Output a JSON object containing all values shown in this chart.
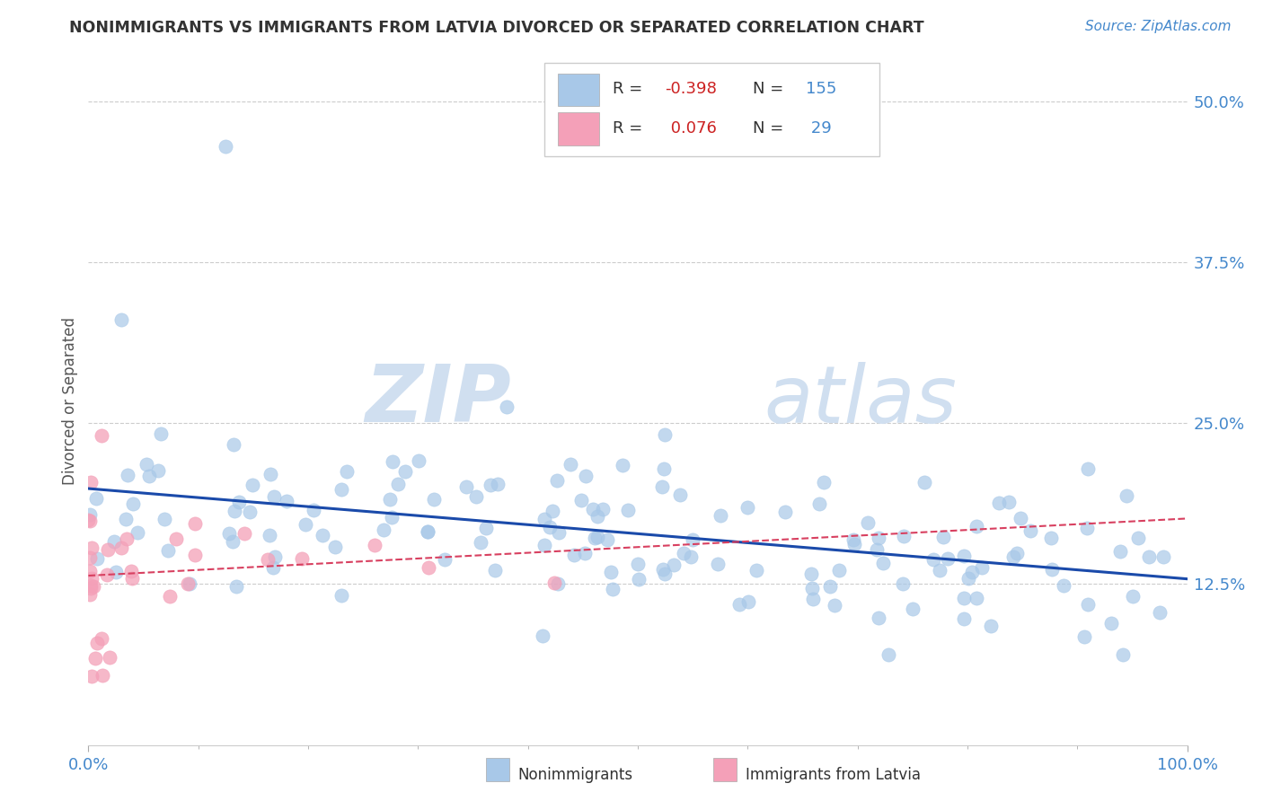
{
  "title": "NONIMMIGRANTS VS IMMIGRANTS FROM LATVIA DIVORCED OR SEPARATED CORRELATION CHART",
  "source_text": "Source: ZipAtlas.com",
  "ylabel": "Divorced or Separated",
  "legend_labels": [
    "Nonimmigrants",
    "Immigrants from Latvia"
  ],
  "nonimm_R": -0.398,
  "nonimm_N": 155,
  "imm_R": 0.076,
  "imm_N": 29,
  "nonimm_color": "#a8c8e8",
  "imm_color": "#f4a0b8",
  "nonimm_line_color": "#1a4aaa",
  "imm_line_color": "#d84060",
  "bg_color": "#ffffff",
  "watermark_zip": "ZIP",
  "watermark_atlas": "atlas",
  "watermark_color": "#d0dff0",
  "xlim": [
    0.0,
    1.0
  ],
  "ylim": [
    0.0,
    0.535
  ],
  "ytick_positions": [
    0.125,
    0.25,
    0.375,
    0.5
  ],
  "ytick_labels": [
    "12.5%",
    "25.0%",
    "37.5%",
    "50.0%"
  ],
  "grid_color": "#cccccc",
  "title_color": "#333333",
  "axis_label_color": "#4488cc",
  "legend_R_color": "#cc2222",
  "legend_N_color": "#4488cc"
}
